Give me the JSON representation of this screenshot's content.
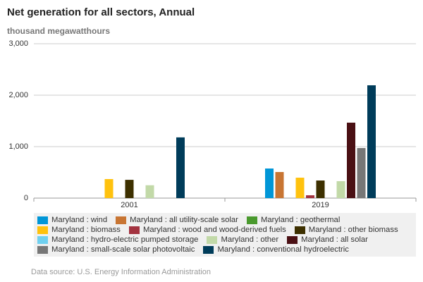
{
  "chart_data": {
    "type": "bar",
    "title": "Net generation for all sectors, Annual",
    "subtitle": "thousand megawatthours",
    "categories": [
      "2001",
      "2019"
    ],
    "series": [
      {
        "name": "Maryland : wind",
        "color": "#0096d7",
        "values": [
          null,
          575
        ]
      },
      {
        "name": "Maryland : all utility-scale solar",
        "color": "#c87533",
        "values": [
          null,
          507
        ]
      },
      {
        "name": "Maryland : geothermal",
        "color": "#4a9a2e",
        "values": [
          null,
          null
        ]
      },
      {
        "name": "Maryland : biomass",
        "color": "#ffc20e",
        "values": [
          370,
          397
        ]
      },
      {
        "name": "Maryland : wood and wood-derived fuels",
        "color": "#a33340",
        "values": [
          null,
          55
        ]
      },
      {
        "name": "Maryland : other biomass",
        "color": "#3d3000",
        "values": [
          355,
          342
        ]
      },
      {
        "name": "Maryland : hydro-electric pumped storage",
        "color": "#6fd0f0",
        "values": [
          null,
          null
        ]
      },
      {
        "name": "Maryland : other",
        "color": "#c2d9a8",
        "values": [
          250,
          329
        ]
      },
      {
        "name": "Maryland : all solar",
        "color": "#4a1014",
        "values": [
          null,
          1466
        ]
      },
      {
        "name": "Maryland : small-scale solar photovoltaic",
        "color": "#777777",
        "values": [
          null,
          973
        ]
      },
      {
        "name": "Maryland : conventional hydroelectric",
        "color": "#003c5a",
        "values": [
          1180,
          2192
        ]
      }
    ],
    "ylim": [
      0,
      3000
    ],
    "yticks": [
      0,
      {
        "value": 1000,
        "label": "1,000"
      },
      {
        "value": 2000,
        "label": "2,000"
      },
      {
        "value": 3000,
        "label": "3,000"
      }
    ],
    "grid": true,
    "source": "Data source: U.S. Energy Information Administration"
  }
}
